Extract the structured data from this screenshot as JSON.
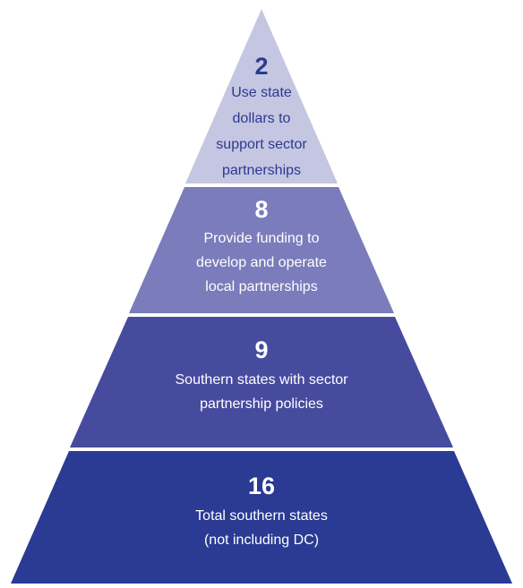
{
  "levels": [
    {
      "number": "2",
      "lines": [
        "Use state",
        "dollars to",
        "support sector",
        "partnerships"
      ]
    },
    {
      "number": "8",
      "lines": [
        "Provide funding to",
        "develop and operate",
        "local partnerships"
      ]
    },
    {
      "number": "9",
      "lines": [
        "Southern states with sector",
        "partnership policies"
      ]
    },
    {
      "number": "16",
      "lines": [
        "Total southern states",
        "(not including DC)"
      ]
    }
  ]
}
